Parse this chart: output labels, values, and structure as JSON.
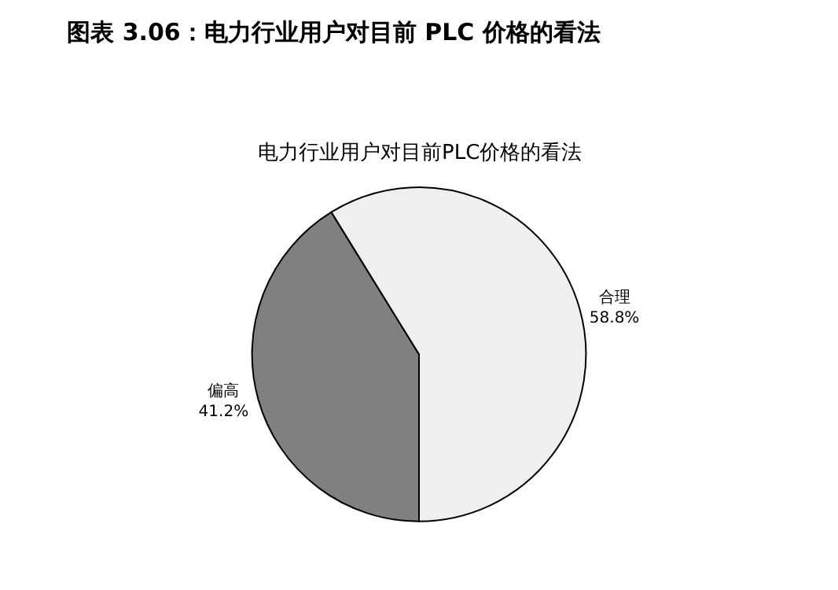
{
  "chart_data": {
    "type": "pie",
    "title": "图表 3.06：电力行业用户对目前 PLC 价格的看法",
    "subtitle": "电力行业用户对目前PLC价格的看法",
    "categories": [
      "偏高",
      "合理"
    ],
    "values": [
      41.2,
      58.8
    ],
    "colors": [
      "#808080",
      "#efefef"
    ],
    "value_labels": [
      "41.2%",
      "58.8%"
    ],
    "legend": false
  }
}
